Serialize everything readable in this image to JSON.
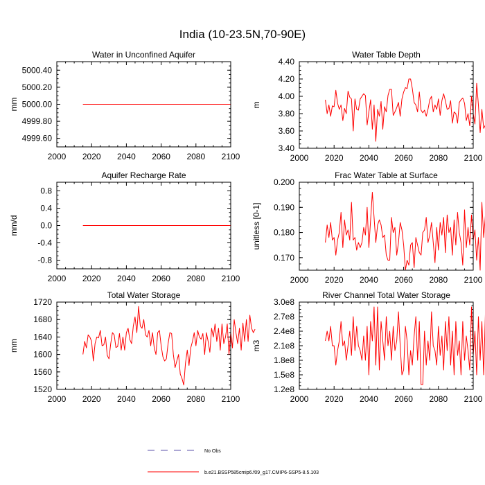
{
  "figure": {
    "title": "India (10-23.5N,70-90E)",
    "legend": [
      {
        "label": "No Obs",
        "style": "dashed",
        "color": "#5a4fa8"
      },
      {
        "label": "b.e21.BSSP585cmip6.f09_g17.CMIP6-SSP5-8.5.103",
        "style": "solid",
        "color": "#ff0000"
      }
    ]
  },
  "colors": {
    "series": "#ff0000",
    "obs": "#5a4fa8",
    "axis": "#000000"
  },
  "chart_data": [
    {
      "type": "line",
      "title": "Water in Unconfined Aquifer",
      "ylabel": "mm",
      "xlim": [
        2000,
        2100
      ],
      "ylim": [
        4999.5,
        5000.5
      ],
      "xticks": [
        2000,
        2020,
        2040,
        2060,
        2080,
        2100
      ],
      "yticks": [
        4999.6,
        4999.8,
        5000.0,
        5000.2,
        5000.4
      ],
      "ytick_labels": [
        "4999.60",
        "4999.80",
        "5000.00",
        "5000.20",
        "5000.40"
      ],
      "x_start": 2015,
      "series": [
        {
          "name": "b.e21.BSSP585cmip6.f09_g17.CMIP6-SSP5-8.5.103",
          "constant": 5000.0
        }
      ]
    },
    {
      "type": "line",
      "title": "Water Table Depth",
      "ylabel": "m",
      "xlim": [
        2000,
        2100
      ],
      "ylim": [
        3.4,
        4.4
      ],
      "xticks": [
        2000,
        2020,
        2040,
        2060,
        2080,
        2100
      ],
      "yticks": [
        3.4,
        3.6,
        3.8,
        4.0,
        4.2,
        4.4
      ],
      "ytick_labels": [
        "3.40",
        "3.60",
        "3.80",
        "4.00",
        "4.20",
        "4.40"
      ],
      "x_start": 2015,
      "series": [
        {
          "name": "b.e21.BSSP585cmip6.f09_g17.CMIP6-SSP5-8.5.103",
          "values": [
            3.96,
            3.8,
            3.9,
            3.77,
            3.89,
            3.88,
            4.07,
            3.92,
            3.85,
            3.9,
            3.72,
            3.86,
            3.8,
            4.06,
            3.99,
            3.97,
            3.6,
            3.97,
            3.85,
            3.84,
            3.97,
            4.0,
            4.03,
            4.01,
            3.67,
            3.82,
            3.96,
            3.62,
            3.9,
            3.48,
            3.85,
            3.77,
            3.94,
            3.62,
            3.88,
            3.82,
            4.01,
            4.08,
            4.08,
            3.78,
            3.82,
            3.87,
            3.93,
            3.77,
            3.97,
            4.05,
            4.1,
            4.09,
            4.2,
            4.2,
            4.09,
            3.93,
            3.9,
            3.82,
            4.05,
            3.84,
            3.81,
            3.84,
            3.77,
            3.85,
            3.96,
            4.0,
            3.82,
            3.9,
            3.85,
            3.97,
            3.78,
            3.95,
            4.03,
            3.95,
            3.85,
            3.86,
            3.95,
            3.69,
            3.82,
            3.8,
            3.69,
            3.93,
            3.96,
            3.98,
            3.92,
            3.72,
            3.8,
            3.66,
            4.0,
            3.8,
            3.68,
            4.15,
            3.9,
            3.58,
            3.85,
            3.63,
            3.67,
            3.61,
            3.98,
            3.78,
            3.76,
            3.76,
            3.6,
            3.8
          ]
        }
      ]
    },
    {
      "type": "line",
      "title": "Aquifer Recharge Rate",
      "ylabel": "mm/d",
      "xlim": [
        2000,
        2100
      ],
      "ylim": [
        -1.0,
        1.0
      ],
      "xticks": [
        2000,
        2020,
        2040,
        2060,
        2080,
        2100
      ],
      "yticks": [
        -0.8,
        -0.4,
        0.0,
        0.4,
        0.8
      ],
      "ytick_labels": [
        "-0.8",
        "-0.4",
        "0.0",
        "0.4",
        "0.8"
      ],
      "x_start": 2015,
      "series": [
        {
          "name": "b.e21.BSSP585cmip6.f09_g17.CMIP6-SSP5-8.5.103",
          "constant": 0.0
        }
      ]
    },
    {
      "type": "line",
      "title": "Frac Water Table at Surface",
      "ylabel": "unitless [0-1]",
      "xlim": [
        2000,
        2100
      ],
      "ylim": [
        0.165,
        0.2
      ],
      "xticks": [
        2000,
        2020,
        2040,
        2060,
        2080,
        2100
      ],
      "yticks": [
        0.17,
        0.18,
        0.19,
        0.2
      ],
      "ytick_labels": [
        "0.170",
        "0.180",
        "0.190",
        "0.200"
      ],
      "x_start": 2015,
      "series": [
        {
          "name": "b.e21.BSSP585cmip6.f09_g17.CMIP6-SSP5-8.5.103",
          "values": [
            0.176,
            0.183,
            0.178,
            0.184,
            0.177,
            0.178,
            0.171,
            0.177,
            0.18,
            0.188,
            0.174,
            0.185,
            0.179,
            0.181,
            0.177,
            0.192,
            0.177,
            0.178,
            0.173,
            0.176,
            0.174,
            0.176,
            0.182,
            0.179,
            0.19,
            0.174,
            0.185,
            0.196,
            0.186,
            0.176,
            0.183,
            0.185,
            0.183,
            0.178,
            0.179,
            0.171,
            0.169,
            0.169,
            0.186,
            0.18,
            0.182,
            0.171,
            0.176,
            0.184,
            0.181,
            0.175,
            0.165,
            0.169,
            0.167,
            0.175,
            0.176,
            0.166,
            0.178,
            0.175,
            0.172,
            0.171,
            0.18,
            0.181,
            0.186,
            0.176,
            0.179,
            0.184,
            0.176,
            0.168,
            0.182,
            0.173,
            0.184,
            0.179,
            0.186,
            0.172,
            0.187,
            0.18,
            0.182,
            0.171,
            0.185,
            0.175,
            0.188,
            0.18,
            0.176,
            0.167,
            0.189,
            0.174,
            0.182,
            0.175,
            0.187,
            0.177,
            0.181,
            0.169,
            0.178,
            0.165,
            0.192,
            0.178,
            0.187,
            0.185,
            0.188,
            0.174,
            0.178,
            0.183,
            0.182,
            0.179
          ]
        }
      ]
    },
    {
      "type": "line",
      "title": "Total Water Storage",
      "ylabel": "mm",
      "xlim": [
        2000,
        2100
      ],
      "ylim": [
        1520,
        1720
      ],
      "xticks": [
        2000,
        2020,
        2040,
        2060,
        2080,
        2100
      ],
      "yticks": [
        1520,
        1560,
        1600,
        1640,
        1680,
        1720
      ],
      "ytick_labels": [
        "1520",
        "1560",
        "1600",
        "1640",
        "1680",
        "1720"
      ],
      "x_start": 2015,
      "series": [
        {
          "name": "b.e21.BSSP585cmip6.f09_g17.CMIP6-SSP5-8.5.103",
          "values": [
            1600,
            1630,
            1615,
            1645,
            1640,
            1630,
            1585,
            1625,
            1640,
            1638,
            1655,
            1620,
            1622,
            1640,
            1598,
            1590,
            1625,
            1650,
            1645,
            1616,
            1618,
            1648,
            1610,
            1640,
            1610,
            1650,
            1660,
            1634,
            1625,
            1665,
            1686,
            1650,
            1710,
            1665,
            1660,
            1680,
            1645,
            1640,
            1655,
            1620,
            1650,
            1615,
            1600,
            1650,
            1655,
            1620,
            1595,
            1585,
            1590,
            1625,
            1650,
            1648,
            1600,
            1570,
            1585,
            1600,
            1555,
            1545,
            1530,
            1580,
            1610,
            1575,
            1615,
            1630,
            1650,
            1620,
            1655,
            1640,
            1635,
            1648,
            1600,
            1650,
            1630,
            1605,
            1660,
            1640,
            1670,
            1630,
            1660,
            1610,
            1670,
            1625,
            1640,
            1670,
            1600,
            1650,
            1615,
            1680,
            1650,
            1625,
            1660,
            1610,
            1672,
            1630,
            1680,
            1630,
            1690,
            1660,
            1650,
            1658
          ]
        }
      ]
    },
    {
      "type": "line",
      "title": "River Channel Total Water Storage",
      "ylabel": "m3",
      "xlim": [
        2000,
        2100
      ],
      "ylim": [
        120000000.0,
        300000000.0
      ],
      "xticks": [
        2000,
        2020,
        2040,
        2060,
        2080,
        2100
      ],
      "yticks": [
        120000000.0,
        150000000.0,
        180000000.0,
        210000000.0,
        240000000.0,
        270000000.0,
        300000000.0
      ],
      "ytick_labels": [
        "1.2e8",
        "1.5e8",
        "1.8e8",
        "2.1e8",
        "2.4e8",
        "2.7e8",
        "3.0e8"
      ],
      "x_start": 2015,
      "series": [
        {
          "name": "b.e21.BSSP585cmip6.f09_g17.CMIP6-SSP5-8.5.103",
          "values": [
            220000000.0,
            240000000.0,
            220000000.0,
            250000000.0,
            210000000.0,
            210000000.0,
            170000000.0,
            200000000.0,
            220000000.0,
            260000000.0,
            210000000.0,
            220000000.0,
            180000000.0,
            210000000.0,
            240000000.0,
            190000000.0,
            270000000.0,
            200000000.0,
            250000000.0,
            210000000.0,
            200000000.0,
            180000000.0,
            230000000.0,
            180000000.0,
            250000000.0,
            150000000.0,
            260000000.0,
            220000000.0,
            290000000.0,
            170000000.0,
            290000000.0,
            160000000.0,
            260000000.0,
            220000000.0,
            180000000.0,
            270000000.0,
            210000000.0,
            240000000.0,
            180000000.0,
            250000000.0,
            200000000.0,
            220000000.0,
            280000000.0,
            210000000.0,
            150000000.0,
            160000000.0,
            250000000.0,
            220000000.0,
            150000000.0,
            200000000.0,
            170000000.0,
            230000000.0,
            270000000.0,
            180000000.0,
            260000000.0,
            130000000.0,
            130000000.0,
            240000000.0,
            170000000.0,
            220000000.0,
            180000000.0,
            280000000.0,
            210000000.0,
            200000000.0,
            170000000.0,
            250000000.0,
            190000000.0,
            230000000.0,
            160000000.0,
            260000000.0,
            200000000.0,
            270000000.0,
            170000000.0,
            240000000.0,
            150000000.0,
            260000000.0,
            190000000.0,
            220000000.0,
            150000000.0,
            260000000.0,
            180000000.0,
            230000000.0,
            200000000.0,
            160000000.0,
            290000000.0,
            190000000.0,
            240000000.0,
            150000000.0,
            270000000.0,
            180000000.0,
            260000000.0,
            150000000.0,
            280000000.0,
            230000000.0,
            200000000.0,
            210000000.0,
            250000000.0,
            230000000.0,
            190000000.0,
            260000000.0
          ]
        }
      ]
    }
  ]
}
